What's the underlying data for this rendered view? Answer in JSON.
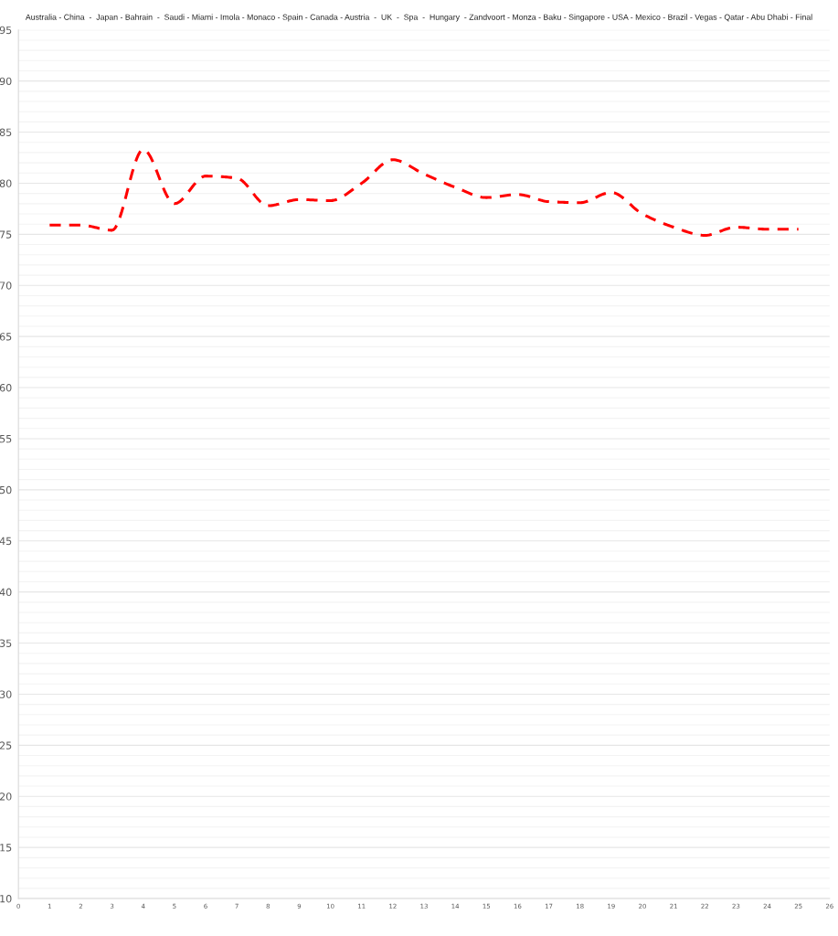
{
  "chart_data": {
    "type": "line",
    "title": "Australia - China  -  Japan - Bahrain  -  Saudi - Miami - Imola - Monaco - Spain - Canada - Austria  -  UK  -  Spa  -  Hungary  - Zandvoort - Monza - Baku - Singapore - USA - Mexico - Brazil - Vegas - Qatar - Abu Dhabi - Final",
    "x": [
      1,
      2,
      3,
      4,
      5,
      6,
      7,
      8,
      9,
      10,
      11,
      12,
      13,
      14,
      15,
      16,
      17,
      18,
      19,
      20,
      21,
      22,
      23,
      24,
      25
    ],
    "series": [
      {
        "color": "#ff0000",
        "values": [
          75.9,
          75.9,
          75.4,
          83.3,
          78.0,
          80.7,
          80.5,
          77.8,
          78.4,
          78.3,
          80.0,
          82.3,
          80.9,
          79.6,
          78.6,
          78.9,
          78.2,
          78.1,
          79.1,
          77.0,
          75.7,
          74.9,
          75.7,
          75.5,
          75.5
        ]
      }
    ],
    "line_style": "dashed",
    "marker": "none",
    "grid": "y",
    "xlim": [
      0,
      26
    ],
    "xticks": [
      0,
      1,
      2,
      3,
      4,
      5,
      6,
      7,
      8,
      9,
      10,
      11,
      12,
      13,
      14,
      15,
      16,
      17,
      18,
      19,
      20,
      21,
      22,
      23,
      24,
      25,
      26
    ],
    "ylim": [
      10,
      95
    ],
    "yticks": [
      10,
      {
        "value": 11,
        "label": null
      },
      {
        "value": 12,
        "label": null
      },
      {
        "value": 13,
        "label": null
      },
      {
        "value": 14,
        "label": null
      },
      15,
      {
        "value": 16,
        "label": null
      },
      {
        "value": 17,
        "label": null
      },
      {
        "value": 18,
        "label": null
      },
      {
        "value": 19,
        "label": null
      },
      20,
      {
        "value": 21,
        "label": null
      },
      {
        "value": 22,
        "label": null
      },
      {
        "value": 23,
        "label": null
      },
      {
        "value": 24,
        "label": null
      },
      25,
      {
        "value": 26,
        "label": null
      },
      {
        "value": 27,
        "label": null
      },
      {
        "value": 28,
        "label": null
      },
      {
        "value": 29,
        "label": null
      },
      30,
      {
        "value": 31,
        "label": null
      },
      {
        "value": 32,
        "label": null
      },
      {
        "value": 33,
        "label": null
      },
      {
        "value": 34,
        "label": null
      },
      35,
      {
        "value": 36,
        "label": null
      },
      {
        "value": 37,
        "label": null
      },
      {
        "value": 38,
        "label": null
      },
      {
        "value": 39,
        "label": null
      },
      40,
      {
        "value": 41,
        "label": null
      },
      {
        "value": 42,
        "label": null
      },
      {
        "value": 43,
        "label": null
      },
      {
        "value": 44,
        "label": null
      },
      45,
      {
        "value": 46,
        "label": null
      },
      {
        "value": 47,
        "label": null
      },
      {
        "value": 48,
        "label": null
      },
      {
        "value": 49,
        "label": null
      },
      50,
      {
        "value": 51,
        "label": null
      },
      {
        "value": 52,
        "label": null
      },
      {
        "value": 53,
        "label": null
      },
      {
        "value": 54,
        "label": null
      },
      55,
      {
        "value": 56,
        "label": null
      },
      {
        "value": 57,
        "label": null
      },
      {
        "value": 58,
        "label": null
      },
      {
        "value": 59,
        "label": null
      },
      60,
      {
        "value": 61,
        "label": null
      },
      {
        "value": 62,
        "label": null
      },
      {
        "value": 63,
        "label": null
      },
      {
        "value": 64,
        "label": null
      },
      65,
      {
        "value": 66,
        "label": null
      },
      {
        "value": 67,
        "label": null
      },
      {
        "value": 68,
        "label": null
      },
      {
        "value": 69,
        "label": null
      },
      70,
      {
        "value": 71,
        "label": null
      },
      {
        "value": 72,
        "label": null
      },
      {
        "value": 73,
        "label": null
      },
      {
        "value": 74,
        "label": null
      },
      75,
      {
        "value": 76,
        "label": null
      },
      {
        "value": 77,
        "label": null
      },
      {
        "value": 78,
        "label": null
      },
      {
        "value": 79,
        "label": null
      },
      80,
      {
        "value": 81,
        "label": null
      },
      {
        "value": 82,
        "label": null
      },
      {
        "value": 83,
        "label": null
      },
      {
        "value": 84,
        "label": null
      },
      85,
      {
        "value": 86,
        "label": null
      },
      {
        "value": 87,
        "label": null
      },
      {
        "value": 88,
        "label": null
      },
      {
        "value": 89,
        "label": null
      },
      90,
      {
        "value": 91,
        "label": null
      },
      {
        "value": 92,
        "label": null
      },
      {
        "value": 93,
        "label": null
      },
      {
        "value": 94,
        "label": null
      },
      95
    ]
  }
}
